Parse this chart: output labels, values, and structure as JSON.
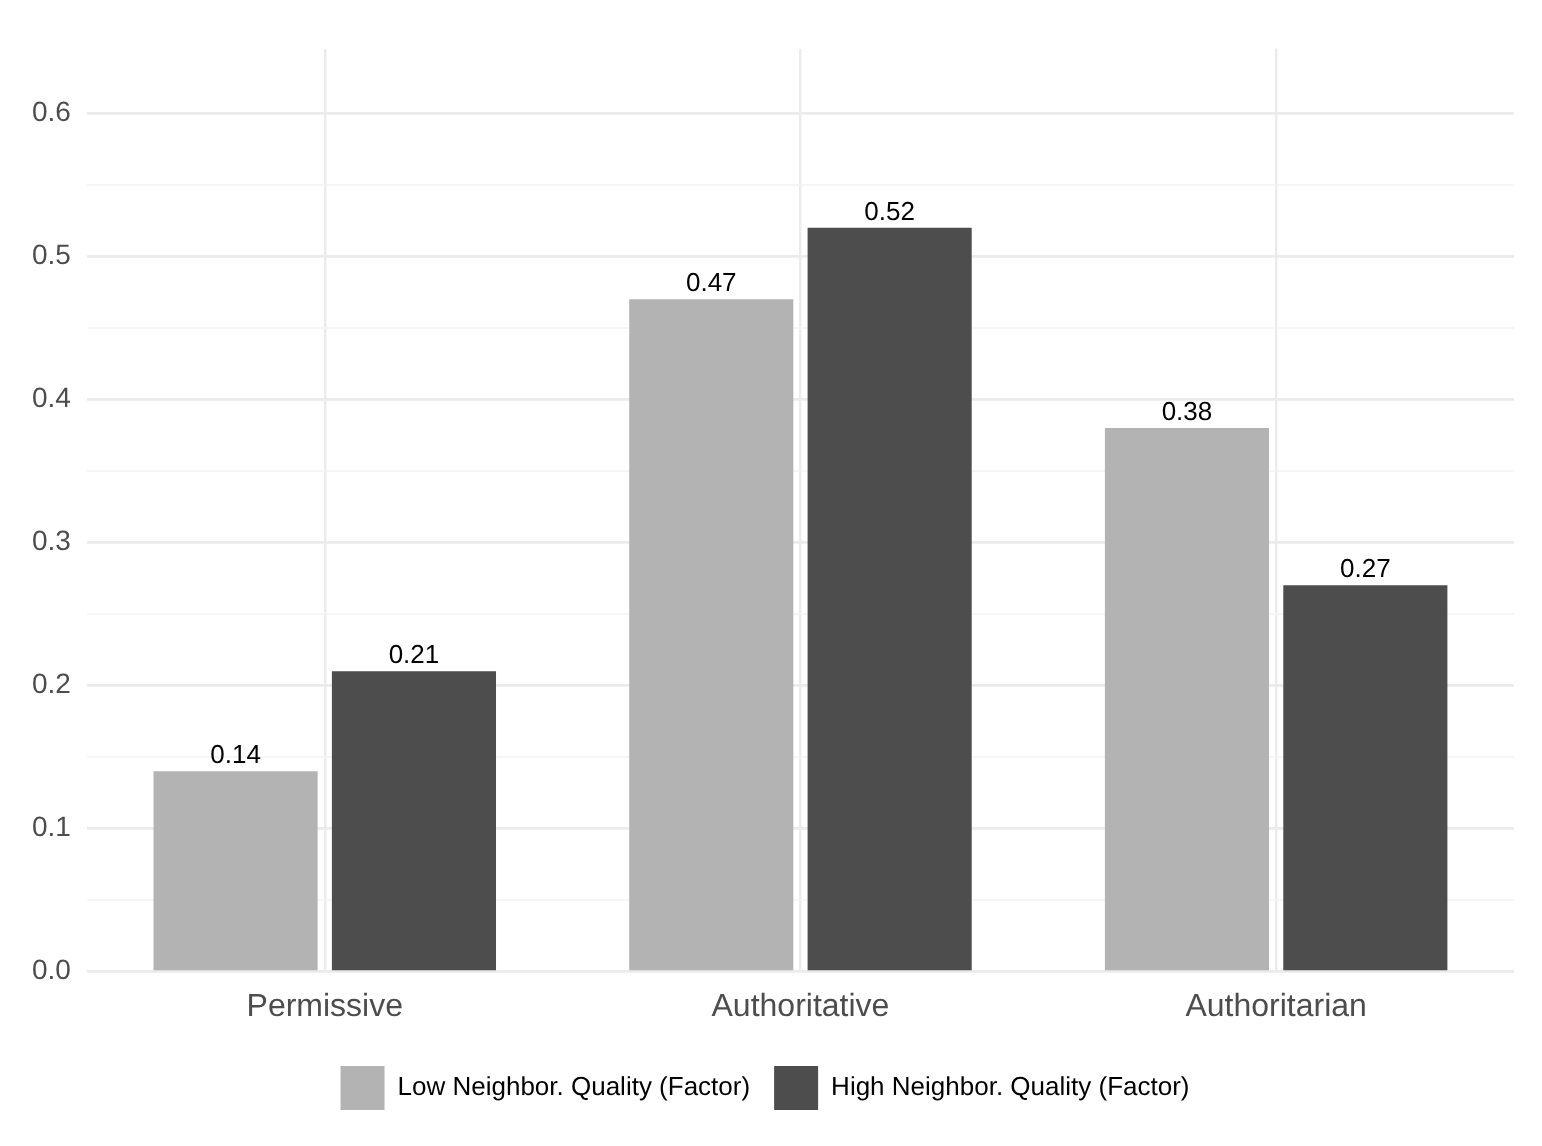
{
  "chart_data": {
    "type": "bar",
    "categories": [
      "Permissive",
      "Authoritative",
      "Authoritarian"
    ],
    "series": [
      {
        "name": "Low Neighbor. Quality (Factor)",
        "color": "#b3b3b3",
        "values": [
          0.14,
          0.47,
          0.38
        ]
      },
      {
        "name": "High Neighbor. Quality (Factor)",
        "color": "#4d4d4d",
        "values": [
          0.21,
          0.52,
          0.27
        ]
      }
    ],
    "ylim": [
      0,
      0.645
    ],
    "yticks": [
      {
        "value": 0,
        "label": "0.0"
      },
      {
        "value": 0.05,
        "label": null
      },
      {
        "value": 0.1,
        "label": "0.1"
      },
      {
        "value": 0.15,
        "label": null
      },
      {
        "value": 0.2,
        "label": "0.2"
      },
      {
        "value": 0.25,
        "label": null
      },
      {
        "value": 0.3,
        "label": "0.3"
      },
      {
        "value": 0.35,
        "label": null
      },
      {
        "value": 0.4,
        "label": "0.4"
      },
      {
        "value": 0.45,
        "label": null
      },
      {
        "value": 0.5,
        "label": "0.5"
      },
      {
        "value": 0.55,
        "label": null
      },
      {
        "value": 0.6,
        "label": "0.6"
      }
    ],
    "grid": true,
    "legend": "bottom",
    "data_labels": true
  }
}
